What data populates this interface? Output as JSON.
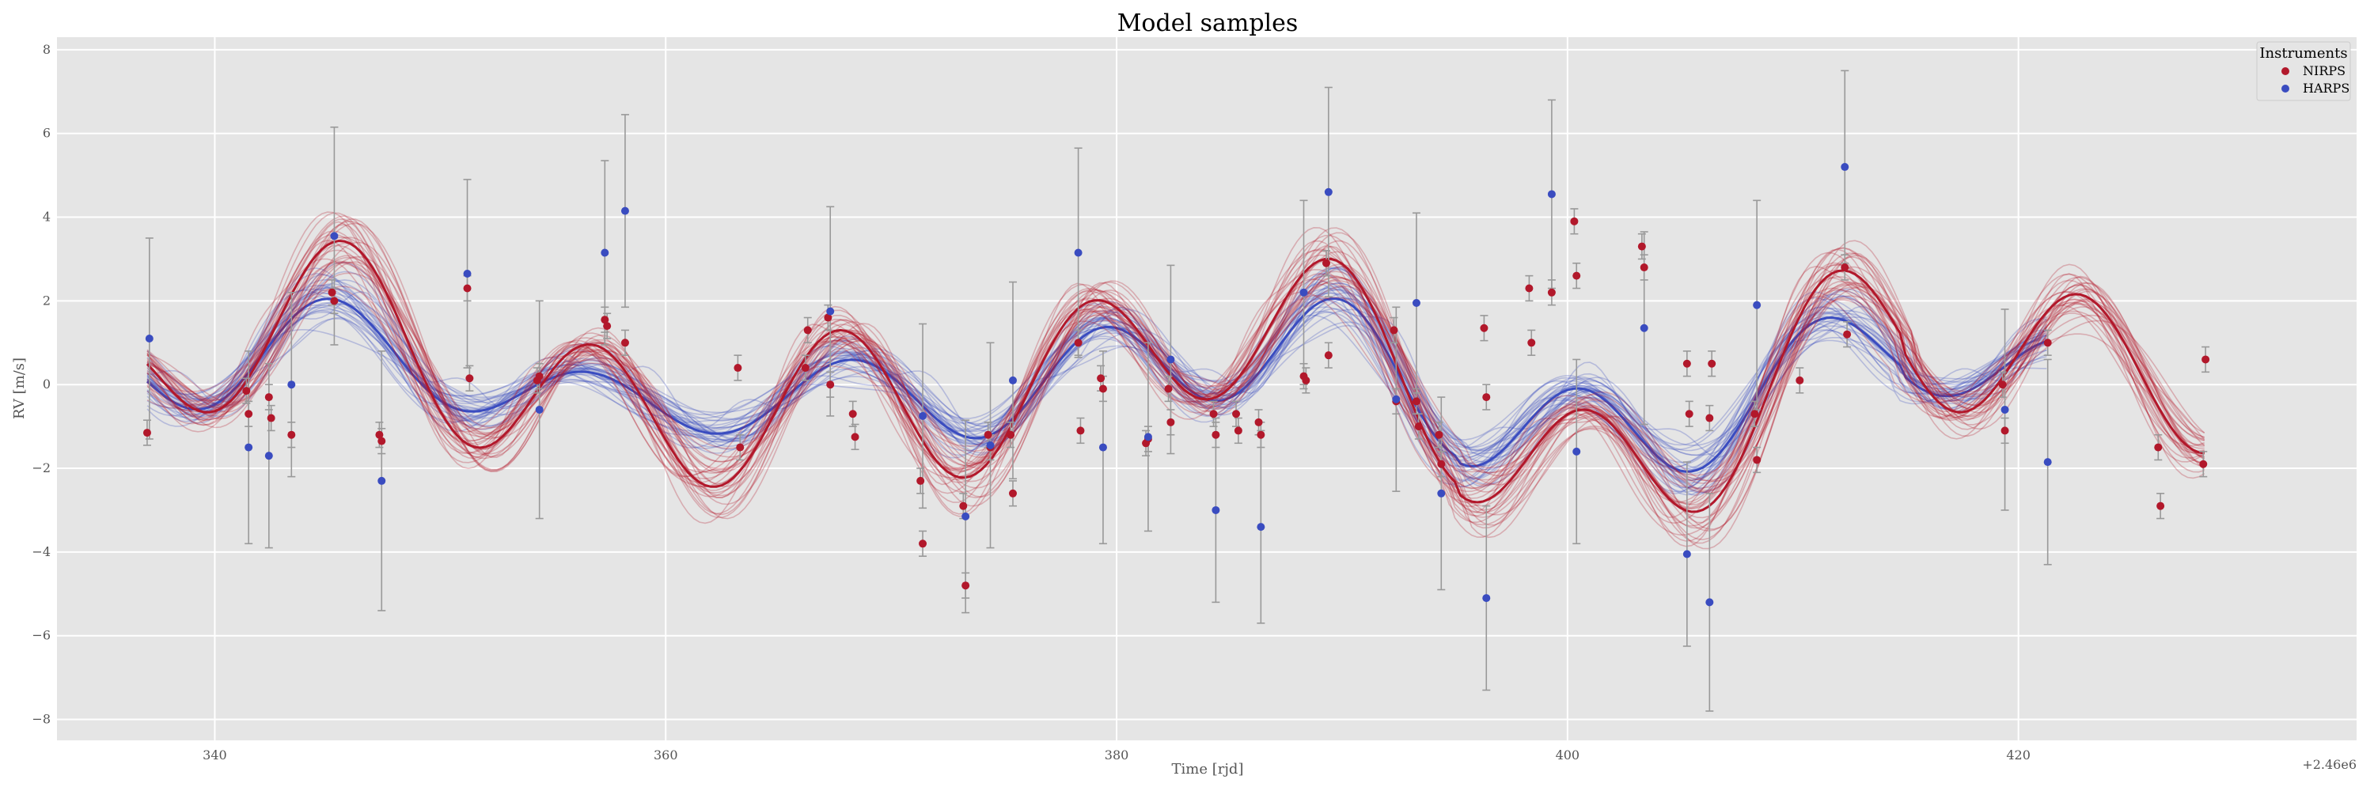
{
  "chart_data": {
    "type": "scatter",
    "title": "Model samples",
    "xlabel": "Time [rjd]",
    "ylabel": "RV [m/s]",
    "x_offset_label": "+2.46e6",
    "xlim": [
      333,
      435
    ],
    "ylim": [
      -8.5,
      8.3
    ],
    "x_ticks": [
      340,
      360,
      380,
      400,
      420
    ],
    "y_ticks": [
      -8,
      -6,
      -4,
      -2,
      0,
      2,
      4,
      6,
      8
    ],
    "grid": true,
    "legend": {
      "title": "Instruments",
      "position": "top-right"
    },
    "colors": {
      "NIRPS": "#b2182b",
      "HARPS": "#3a4cc0",
      "background": "#e5e5e5",
      "errorbar": "#999999"
    },
    "series": [
      {
        "name": "NIRPS",
        "points": [
          {
            "x": 337.0,
            "y": -1.15,
            "err": 0.3
          },
          {
            "x": 341.4,
            "y": -0.15,
            "err": 0.3
          },
          {
            "x": 341.5,
            "y": -0.7,
            "err": 0.3
          },
          {
            "x": 342.4,
            "y": -0.3,
            "err": 0.3
          },
          {
            "x": 342.5,
            "y": -0.8,
            "err": 0.3
          },
          {
            "x": 343.4,
            "y": -1.2,
            "err": 0.3
          },
          {
            "x": 345.2,
            "y": 2.2,
            "err": 0.3
          },
          {
            "x": 345.3,
            "y": 2.0,
            "err": 0.3
          },
          {
            "x": 347.3,
            "y": -1.2,
            "err": 0.3
          },
          {
            "x": 347.4,
            "y": -1.35,
            "err": 0.3
          },
          {
            "x": 351.2,
            "y": 2.3,
            "err": 0.3
          },
          {
            "x": 351.3,
            "y": 0.15,
            "err": 0.3
          },
          {
            "x": 354.3,
            "y": 0.1,
            "err": 0.3
          },
          {
            "x": 354.4,
            "y": 0.2,
            "err": 0.3
          },
          {
            "x": 357.3,
            "y": 1.55,
            "err": 0.3
          },
          {
            "x": 357.4,
            "y": 1.4,
            "err": 0.3
          },
          {
            "x": 358.2,
            "y": 1.0,
            "err": 0.3
          },
          {
            "x": 363.2,
            "y": 0.4,
            "err": 0.3
          },
          {
            "x": 363.3,
            "y": -1.5,
            "err": 0.3
          },
          {
            "x": 366.2,
            "y": 0.4,
            "err": 0.3
          },
          {
            "x": 366.3,
            "y": 1.3,
            "err": 0.3
          },
          {
            "x": 367.2,
            "y": 1.6,
            "err": 0.3
          },
          {
            "x": 367.3,
            "y": 0.0,
            "err": 0.3
          },
          {
            "x": 368.3,
            "y": -0.7,
            "err": 0.3
          },
          {
            "x": 368.4,
            "y": -1.25,
            "err": 0.3
          },
          {
            "x": 371.3,
            "y": -2.3,
            "err": 0.3
          },
          {
            "x": 371.4,
            "y": -3.8,
            "err": 0.3
          },
          {
            "x": 373.2,
            "y": -2.9,
            "err": 0.3
          },
          {
            "x": 373.3,
            "y": -4.8,
            "err": 0.3
          },
          {
            "x": 374.3,
            "y": -1.2,
            "err": 0.3
          },
          {
            "x": 374.4,
            "y": -1.5,
            "err": 0.3
          },
          {
            "x": 375.3,
            "y": -1.2,
            "err": 0.3
          },
          {
            "x": 375.4,
            "y": -2.6,
            "err": 0.3
          },
          {
            "x": 378.3,
            "y": 1.0,
            "err": 0.3
          },
          {
            "x": 378.4,
            "y": -1.1,
            "err": 0.3
          },
          {
            "x": 379.3,
            "y": 0.15,
            "err": 0.3
          },
          {
            "x": 379.4,
            "y": -0.1,
            "err": 0.3
          },
          {
            "x": 381.3,
            "y": -1.4,
            "err": 0.3
          },
          {
            "x": 381.4,
            "y": -1.3,
            "err": 0.3
          },
          {
            "x": 382.3,
            "y": -0.1,
            "err": 0.3
          },
          {
            "x": 382.4,
            "y": -0.9,
            "err": 0.3
          },
          {
            "x": 384.3,
            "y": -0.7,
            "err": 0.3
          },
          {
            "x": 384.4,
            "y": -1.2,
            "err": 0.3
          },
          {
            "x": 385.3,
            "y": -0.7,
            "err": 0.3
          },
          {
            "x": 385.4,
            "y": -1.1,
            "err": 0.3
          },
          {
            "x": 386.3,
            "y": -0.9,
            "err": 0.3
          },
          {
            "x": 386.4,
            "y": -1.2,
            "err": 0.3
          },
          {
            "x": 388.3,
            "y": 0.2,
            "err": 0.3
          },
          {
            "x": 388.4,
            "y": 0.1,
            "err": 0.3
          },
          {
            "x": 389.3,
            "y": 2.9,
            "err": 0.3
          },
          {
            "x": 389.4,
            "y": 0.7,
            "err": 0.3
          },
          {
            "x": 392.3,
            "y": 1.3,
            "err": 0.3
          },
          {
            "x": 392.4,
            "y": -0.4,
            "err": 0.3
          },
          {
            "x": 393.3,
            "y": -0.4,
            "err": 0.3
          },
          {
            "x": 393.4,
            "y": -1.0,
            "err": 0.3
          },
          {
            "x": 394.3,
            "y": -1.2,
            "err": 0.3
          },
          {
            "x": 394.4,
            "y": -1.9,
            "err": 0.3
          },
          {
            "x": 396.3,
            "y": 1.35,
            "err": 0.3
          },
          {
            "x": 396.4,
            "y": -0.3,
            "err": 0.3
          },
          {
            "x": 398.3,
            "y": 2.3,
            "err": 0.3
          },
          {
            "x": 398.4,
            "y": 1.0,
            "err": 0.3
          },
          {
            "x": 399.3,
            "y": 2.2,
            "err": 0.3
          },
          {
            "x": 400.3,
            "y": 3.9,
            "err": 0.3
          },
          {
            "x": 400.4,
            "y": 2.6,
            "err": 0.3
          },
          {
            "x": 403.3,
            "y": 3.3,
            "err": 0.3
          },
          {
            "x": 403.4,
            "y": 2.8,
            "err": 0.3
          },
          {
            "x": 405.3,
            "y": 0.5,
            "err": 0.3
          },
          {
            "x": 405.4,
            "y": -0.7,
            "err": 0.3
          },
          {
            "x": 406.3,
            "y": -0.8,
            "err": 0.3
          },
          {
            "x": 406.4,
            "y": 0.5,
            "err": 0.3
          },
          {
            "x": 408.3,
            "y": -0.7,
            "err": 0.3
          },
          {
            "x": 408.4,
            "y": -1.8,
            "err": 0.3
          },
          {
            "x": 410.3,
            "y": 0.1,
            "err": 0.3
          },
          {
            "x": 412.3,
            "y": 2.8,
            "err": 0.3
          },
          {
            "x": 412.4,
            "y": 1.2,
            "err": 0.3
          },
          {
            "x": 419.3,
            "y": 0.0,
            "err": 0.3
          },
          {
            "x": 419.4,
            "y": -1.1,
            "err": 0.3
          },
          {
            "x": 421.3,
            "y": 1.0,
            "err": 0.3
          },
          {
            "x": 426.2,
            "y": -1.5,
            "err": 0.3
          },
          {
            "x": 426.3,
            "y": -2.9,
            "err": 0.3
          },
          {
            "x": 428.2,
            "y": -1.9,
            "err": 0.3
          },
          {
            "x": 428.3,
            "y": 0.6,
            "err": 0.3
          }
        ]
      },
      {
        "name": "HARPS",
        "points": [
          {
            "x": 337.1,
            "y": 1.1,
            "err": 2.4
          },
          {
            "x": 341.5,
            "y": -1.5,
            "err": 2.3
          },
          {
            "x": 342.4,
            "y": -1.7,
            "err": 2.2
          },
          {
            "x": 343.4,
            "y": 0.0,
            "err": 2.2
          },
          {
            "x": 345.3,
            "y": 3.55,
            "err": 2.6
          },
          {
            "x": 347.4,
            "y": -2.3,
            "err": 3.1
          },
          {
            "x": 351.2,
            "y": 2.65,
            "err": 2.25
          },
          {
            "x": 354.4,
            "y": -0.6,
            "err": 2.6
          },
          {
            "x": 357.3,
            "y": 3.15,
            "err": 2.2
          },
          {
            "x": 358.2,
            "y": 4.15,
            "err": 2.3
          },
          {
            "x": 367.3,
            "y": 1.75,
            "err": 2.5
          },
          {
            "x": 371.4,
            "y": -0.75,
            "err": 2.2
          },
          {
            "x": 373.3,
            "y": -3.15,
            "err": 2.3
          },
          {
            "x": 374.4,
            "y": -1.45,
            "err": 2.45
          },
          {
            "x": 375.4,
            "y": 0.1,
            "err": 2.35
          },
          {
            "x": 378.3,
            "y": 3.15,
            "err": 2.5
          },
          {
            "x": 379.4,
            "y": -1.5,
            "err": 2.3
          },
          {
            "x": 381.4,
            "y": -1.25,
            "err": 2.25
          },
          {
            "x": 382.4,
            "y": 0.6,
            "err": 2.25
          },
          {
            "x": 384.4,
            "y": -3.0,
            "err": 2.2
          },
          {
            "x": 386.4,
            "y": -3.4,
            "err": 2.3
          },
          {
            "x": 388.3,
            "y": 2.2,
            "err": 2.2
          },
          {
            "x": 389.4,
            "y": 4.6,
            "err": 2.5
          },
          {
            "x": 392.4,
            "y": -0.35,
            "err": 2.2
          },
          {
            "x": 393.3,
            "y": 1.95,
            "err": 2.15
          },
          {
            "x": 394.4,
            "y": -2.6,
            "err": 2.3
          },
          {
            "x": 396.4,
            "y": -5.1,
            "err": 2.2
          },
          {
            "x": 399.3,
            "y": 4.55,
            "err": 2.25
          },
          {
            "x": 400.4,
            "y": -1.6,
            "err": 2.2
          },
          {
            "x": 403.4,
            "y": 1.35,
            "err": 2.3
          },
          {
            "x": 405.3,
            "y": -4.05,
            "err": 2.2
          },
          {
            "x": 406.3,
            "y": -5.2,
            "err": 2.6
          },
          {
            "x": 408.4,
            "y": 1.9,
            "err": 2.5
          },
          {
            "x": 412.3,
            "y": 5.2,
            "err": 2.3
          },
          {
            "x": 419.4,
            "y": -0.6,
            "err": 2.4
          },
          {
            "x": 421.3,
            "y": -1.85,
            "err": 2.45
          }
        ]
      }
    ]
  }
}
